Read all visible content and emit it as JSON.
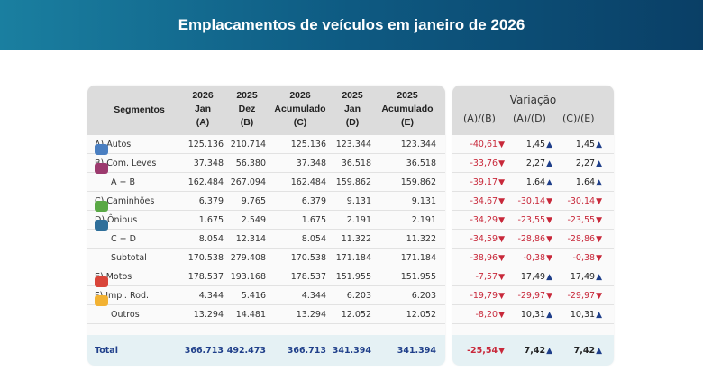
{
  "title": "Emplacamentos de veículos em janeiro de 2026",
  "headers": [
    "Segmentos",
    "2026\nJan\n(A)",
    "2025\nDez\n(B)",
    "2026\nAcumulado\n(C)",
    "2025\nJan\n(D)",
    "2025\nAcumulado\n(E)"
  ],
  "variation": {
    "title": "Variação",
    "headers": [
      "(A)/(B)",
      "(A)/(D)",
      "(C)/(E)"
    ]
  },
  "colors": {
    "up": "#1f3f8a",
    "down": "#c8283a"
  },
  "rows": [
    {
      "label": "A) Autos",
      "icon": "car-icon",
      "icon_color": "#4a7fc1",
      "values": [
        "125.136",
        "210.714",
        "125.136",
        "123.344",
        "123.344"
      ],
      "var": [
        "-40,61",
        "1,45",
        "1,45"
      ]
    },
    {
      "label": "B) Com. Leves",
      "icon": "van-icon",
      "icon_color": "#9c3a6e",
      "values": [
        "37.348",
        "56.380",
        "37.348",
        "36.518",
        "36.518"
      ],
      "var": [
        "-33,76",
        "2,27",
        "2,27"
      ]
    },
    {
      "label": "A + B",
      "icon": "",
      "values": [
        "162.484",
        "267.094",
        "162.484",
        "159.862",
        "159.862"
      ],
      "var": [
        "-39,17",
        "1,64",
        "1,64"
      ]
    },
    {
      "label": "C) Caminhões",
      "icon": "truck-icon",
      "icon_color": "#5aa845",
      "values": [
        "6.379",
        "9.765",
        "6.379",
        "9.131",
        "9.131"
      ],
      "var": [
        "-34,67",
        "-30,14",
        "-30,14"
      ]
    },
    {
      "label": "D) Ônibus",
      "icon": "bus-icon",
      "icon_color": "#2f6f9a",
      "values": [
        "1.675",
        "2.549",
        "1.675",
        "2.191",
        "2.191"
      ],
      "var": [
        "-34,29",
        "-23,55",
        "-23,55"
      ]
    },
    {
      "label": "C + D",
      "icon": "",
      "values": [
        "8.054",
        "12.314",
        "8.054",
        "11.322",
        "11.322"
      ],
      "var": [
        "-34,59",
        "-28,86",
        "-28,86"
      ]
    },
    {
      "label": "Subtotal",
      "icon": "",
      "values": [
        "170.538",
        "279.408",
        "170.538",
        "171.184",
        "171.184"
      ],
      "var": [
        "-38,96",
        "-0,38",
        "-0,38"
      ]
    },
    {
      "label": "E) Motos",
      "icon": "motorcycle-icon",
      "icon_color": "#d9453a",
      "values": [
        "178.537",
        "193.168",
        "178.537",
        "151.955",
        "151.955"
      ],
      "var": [
        "-7,57",
        "17,49",
        "17,49"
      ]
    },
    {
      "label": "F) Impl. Rod.",
      "icon": "trailer-icon",
      "icon_color": "#f2b233",
      "values": [
        "4.344",
        "5.416",
        "4.344",
        "6.203",
        "6.203"
      ],
      "var": [
        "-19,79",
        "-29,97",
        "-29,97"
      ]
    },
    {
      "label": "Outros",
      "icon": "",
      "values": [
        "13.294",
        "14.481",
        "13.294",
        "12.052",
        "12.052"
      ],
      "var": [
        "-8,20",
        "10,31",
        "10,31"
      ]
    }
  ],
  "total": {
    "label": "Total",
    "values": [
      "366.713",
      "492.473",
      "366.713",
      "341.394",
      "341.394"
    ],
    "var": [
      "-25,54",
      "7,42",
      "7,42"
    ]
  }
}
